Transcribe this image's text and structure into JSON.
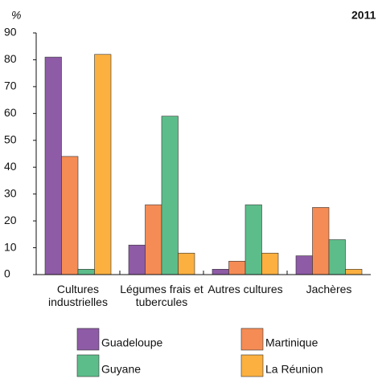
{
  "chart_data": {
    "type": "bar",
    "y_label": "%",
    "annotation": "2011",
    "categories": [
      "Cultures industrielles",
      "Légumes frais et tubercules",
      "Autres cultures",
      "Jachères"
    ],
    "series": [
      {
        "name": "Guadeloupe",
        "color": "#8e5ba6",
        "values": [
          81,
          11,
          2,
          7
        ]
      },
      {
        "name": "Martinique",
        "color": "#f58c55",
        "values": [
          44,
          26,
          5,
          25
        ]
      },
      {
        "name": "Guyane",
        "color": "#5dbd8a",
        "values": [
          2,
          59,
          26,
          13
        ]
      },
      {
        "name": "La Réunion",
        "color": "#fbb040",
        "values": [
          82,
          8,
          8,
          2
        ]
      }
    ],
    "ylim": [
      0,
      90
    ],
    "yticks": [
      0,
      10,
      20,
      30,
      40,
      50,
      60,
      70,
      80,
      90
    ]
  }
}
